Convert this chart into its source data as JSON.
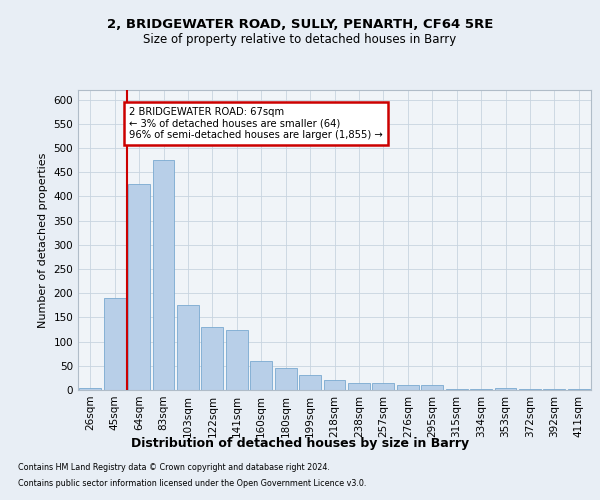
{
  "title1": "2, BRIDGEWATER ROAD, SULLY, PENARTH, CF64 5RE",
  "title2": "Size of property relative to detached houses in Barry",
  "xlabel": "Distribution of detached houses by size in Barry",
  "ylabel": "Number of detached properties",
  "bins": [
    "26sqm",
    "45sqm",
    "64sqm",
    "83sqm",
    "103sqm",
    "122sqm",
    "141sqm",
    "160sqm",
    "180sqm",
    "199sqm",
    "218sqm",
    "238sqm",
    "257sqm",
    "276sqm",
    "295sqm",
    "315sqm",
    "334sqm",
    "353sqm",
    "372sqm",
    "392sqm",
    "411sqm"
  ],
  "values": [
    5,
    190,
    425,
    475,
    175,
    130,
    125,
    60,
    45,
    30,
    20,
    15,
    15,
    10,
    10,
    3,
    2,
    5,
    2,
    3,
    2
  ],
  "bar_color": "#b8cfe8",
  "bar_edge_color": "#7aaad0",
  "vline_color": "#cc0000",
  "annotation_text": "2 BRIDGEWATER ROAD: 67sqm\n← 3% of detached houses are smaller (64)\n96% of semi-detached houses are larger (1,855) →",
  "annotation_box_color": "#cc0000",
  "ylim": [
    0,
    620
  ],
  "yticks": [
    0,
    50,
    100,
    150,
    200,
    250,
    300,
    350,
    400,
    450,
    500,
    550,
    600
  ],
  "footnote1": "Contains HM Land Registry data © Crown copyright and database right 2024.",
  "footnote2": "Contains public sector information licensed under the Open Government Licence v3.0.",
  "bg_color": "#e8eef5",
  "plot_bg_color": "#f0f4f8"
}
